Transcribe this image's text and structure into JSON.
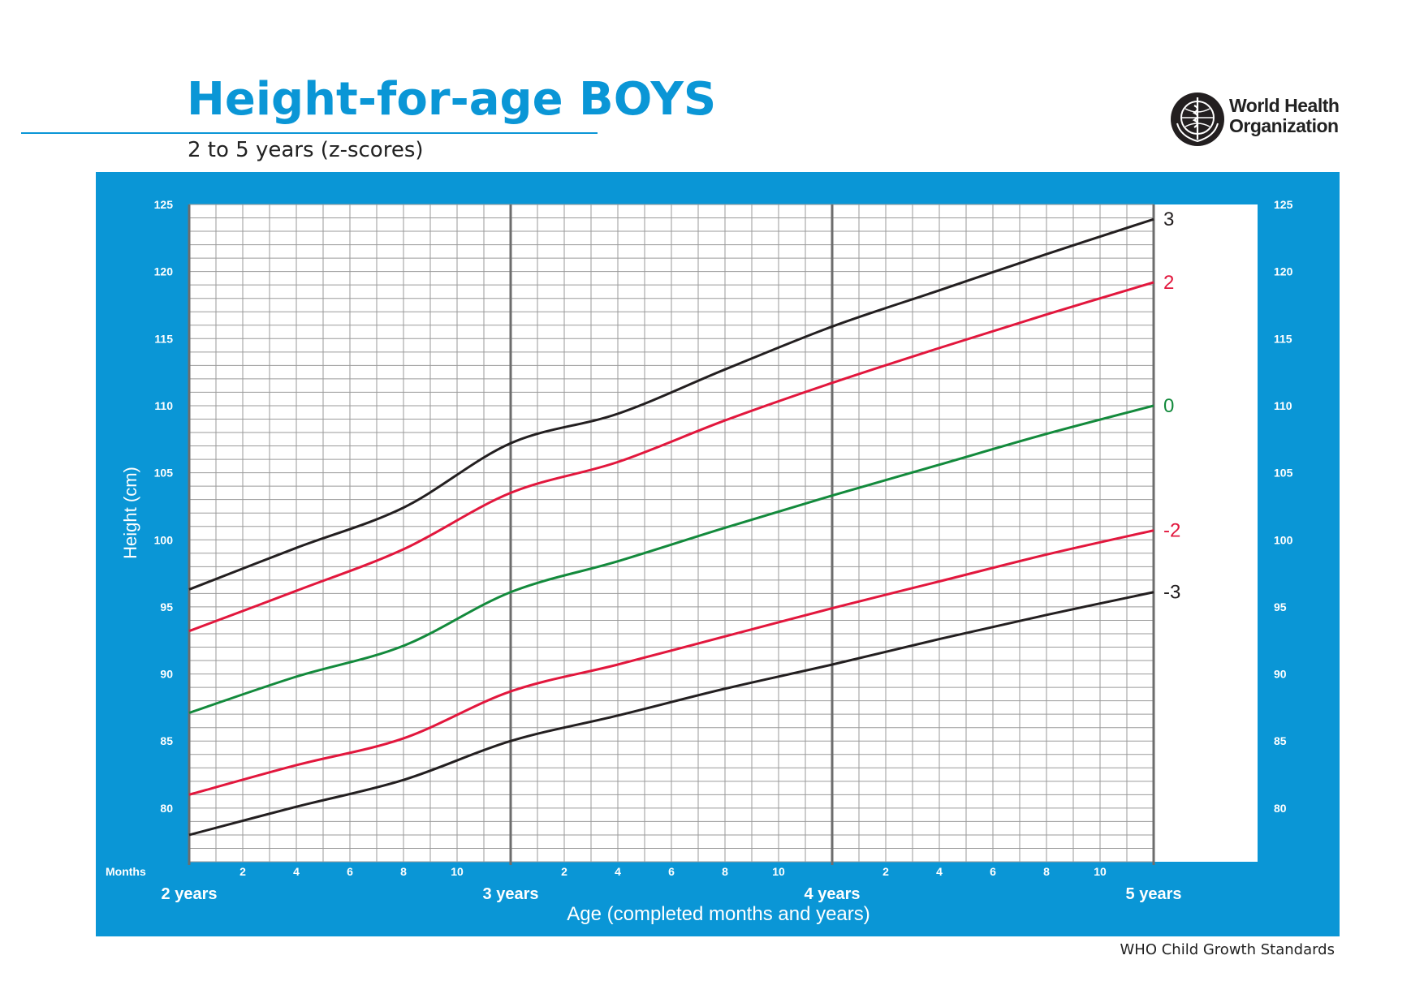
{
  "header": {
    "title": "Height-for-age BOYS",
    "subtitle": "2 to 5 years (z-scores)",
    "org_name_line1": "World Health",
    "org_name_line2": "Organization",
    "logo_icon": "who-emblem-icon"
  },
  "footer": {
    "text": "WHO Child Growth Standards"
  },
  "colors": {
    "panel_blue": "#0a96d6",
    "black_curve": "#231f20",
    "red_curve": "#e2173d",
    "green_curve": "#138a3c",
    "grid": "#9a9a9a",
    "year_line": "#6d6d6d"
  },
  "chart_data": {
    "type": "line",
    "title": "Height-for-age BOYS",
    "subtitle": "2 to 5 years (z-scores)",
    "xlabel": "Age (completed months and years)",
    "ylabel": "Height (cm)",
    "months_label": "Months",
    "xlim": [
      24,
      60
    ],
    "ylim": [
      76,
      125
    ],
    "y_ticks": [
      80,
      85,
      90,
      95,
      100,
      105,
      110,
      115,
      120,
      125
    ],
    "month_ticks": [
      2,
      4,
      6,
      8,
      10
    ],
    "year_labels": [
      {
        "x": 24,
        "label": "2 years"
      },
      {
        "x": 36,
        "label": "3 years"
      },
      {
        "x": 48,
        "label": "4 years"
      },
      {
        "x": 60,
        "label": "5 years"
      }
    ],
    "grid": true,
    "x": [
      24,
      28,
      32,
      36,
      40,
      44,
      48,
      52,
      56,
      60
    ],
    "series": [
      {
        "name": "3",
        "color": "#231f20",
        "values": [
          96.3,
          99.4,
          102.4,
          107.2,
          109.4,
          112.7,
          115.9,
          118.6,
          121.3,
          123.9
        ]
      },
      {
        "name": "2",
        "color": "#e2173d",
        "values": [
          93.2,
          96.2,
          99.3,
          103.5,
          105.8,
          108.9,
          111.7,
          114.3,
          116.8,
          119.2
        ]
      },
      {
        "name": "0",
        "color": "#138a3c",
        "values": [
          87.1,
          89.8,
          92.1,
          96.1,
          98.4,
          100.9,
          103.3,
          105.6,
          107.9,
          110.0
        ]
      },
      {
        "name": "-2",
        "color": "#e2173d",
        "values": [
          81.0,
          83.2,
          85.2,
          88.7,
          90.7,
          92.8,
          94.9,
          96.9,
          98.9,
          100.7
        ]
      },
      {
        "name": "-3",
        "color": "#231f20",
        "values": [
          78.0,
          80.1,
          82.1,
          85.0,
          86.9,
          88.9,
          90.7,
          92.6,
          94.4,
          96.1
        ]
      }
    ]
  }
}
